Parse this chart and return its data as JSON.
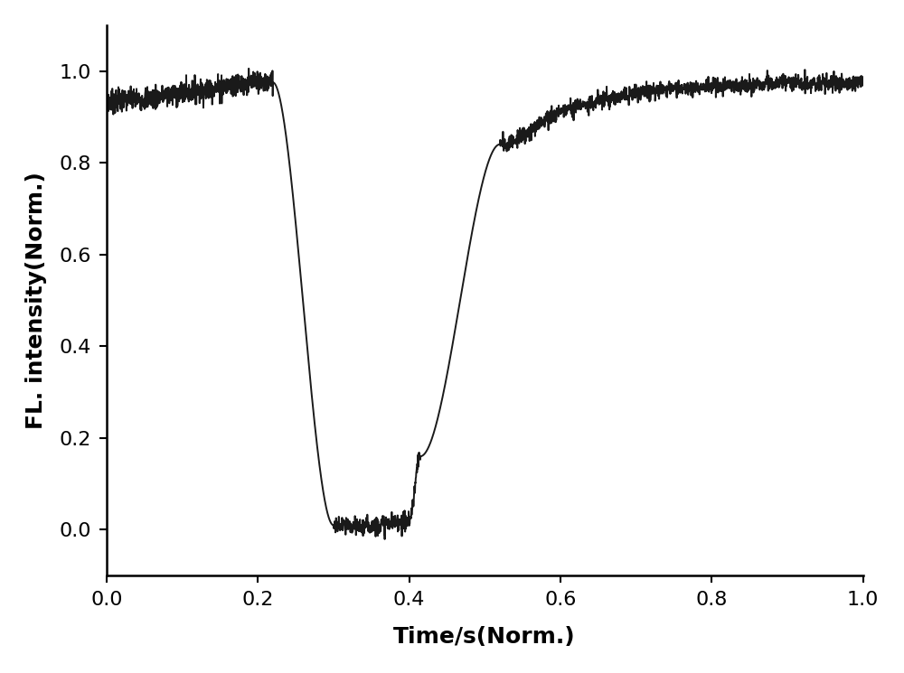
{
  "xlabel": "Time/s(Norm.)",
  "ylabel": "FL. intensity(Norm.)",
  "xlim": [
    0.0,
    1.0
  ],
  "ylim": [
    -0.1,
    1.1
  ],
  "xticks": [
    0.0,
    0.2,
    0.4,
    0.6,
    0.8,
    1.0
  ],
  "yticks": [
    0.0,
    0.2,
    0.4,
    0.6,
    0.8,
    1.0
  ],
  "line_color": "#1a1a1a",
  "line_width": 1.4,
  "background_color": "#ffffff",
  "noise_seed": 7
}
